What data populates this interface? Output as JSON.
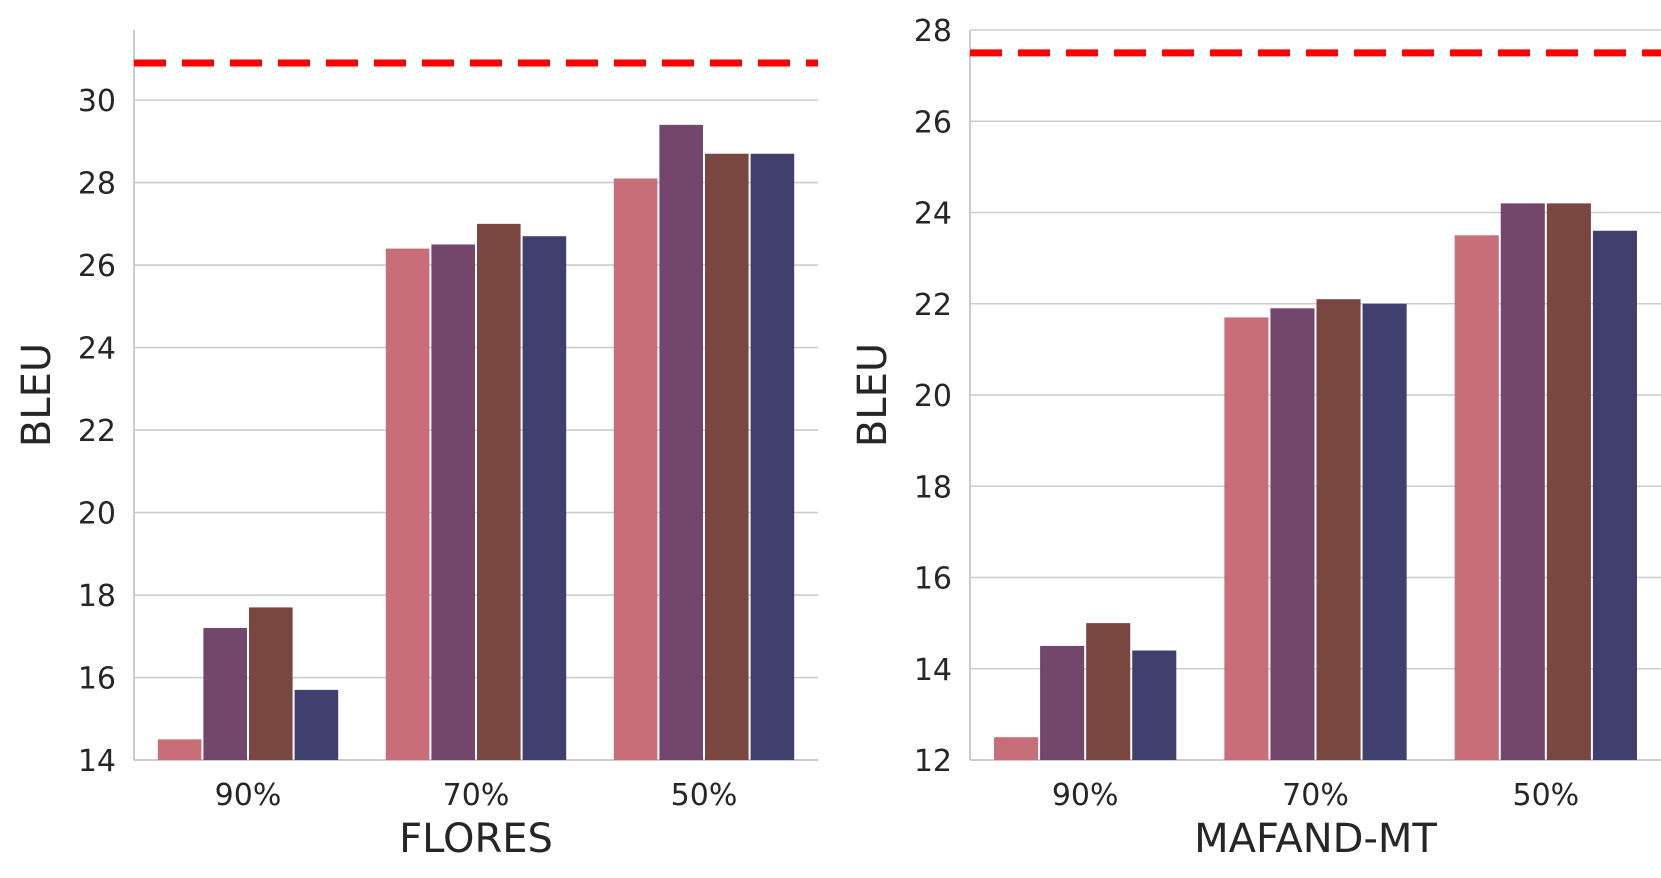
{
  "colors": {
    "series": [
      "#c76e78",
      "#73466b",
      "#7a4640",
      "#40406e"
    ],
    "reference_line": "#ff0000",
    "grid": "#cccccc",
    "text": "#262626"
  },
  "chart_data": [
    {
      "type": "bar",
      "title": "",
      "xlabel": "FLORES",
      "ylabel": "BLEU",
      "categories": [
        "90%",
        "70%",
        "50%"
      ],
      "ylim": [
        14,
        31.7
      ],
      "yticks": [
        14,
        16,
        18,
        20,
        22,
        24,
        26,
        28,
        30
      ],
      "grid": true,
      "legend": "none",
      "reference_line": 30.9,
      "series": [
        {
          "name": "series-1",
          "values": [
            14.5,
            26.4,
            28.1
          ]
        },
        {
          "name": "series-2",
          "values": [
            17.2,
            26.5,
            29.4
          ]
        },
        {
          "name": "series-3",
          "values": [
            17.7,
            27.0,
            28.7
          ]
        },
        {
          "name": "series-4",
          "values": [
            15.7,
            26.7,
            28.7
          ]
        }
      ]
    },
    {
      "type": "bar",
      "title": "",
      "xlabel": "MAFAND-MT",
      "ylabel": "BLEU",
      "categories": [
        "90%",
        "70%",
        "50%"
      ],
      "ylim": [
        12,
        28
      ],
      "yticks": [
        12,
        14,
        16,
        18,
        20,
        22,
        24,
        26,
        28
      ],
      "grid": true,
      "legend": "none",
      "reference_line": 27.5,
      "series": [
        {
          "name": "series-1",
          "values": [
            12.5,
            21.7,
            23.5
          ]
        },
        {
          "name": "series-2",
          "values": [
            14.5,
            21.9,
            24.2
          ]
        },
        {
          "name": "series-3",
          "values": [
            15.0,
            22.1,
            24.2
          ]
        },
        {
          "name": "series-4",
          "values": [
            14.4,
            22.0,
            23.6
          ]
        }
      ]
    }
  ]
}
